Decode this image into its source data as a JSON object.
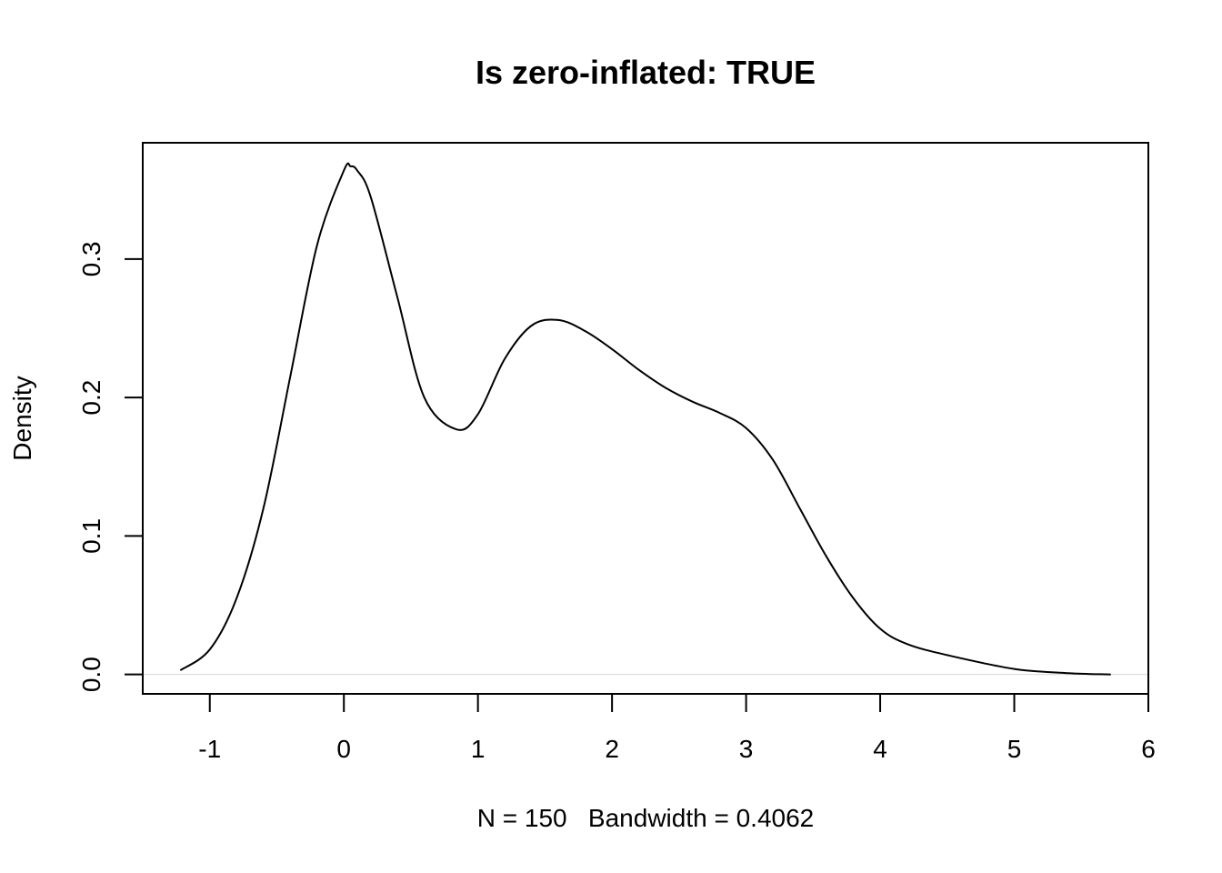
{
  "chart_data": {
    "type": "line",
    "title": "Is zero-inflated: TRUE",
    "xlabel": "N = 150   Bandwidth = 0.4062",
    "ylabel": "Density",
    "xlim": [
      -1.5,
      6.0
    ],
    "ylim": [
      -0.014,
      0.384
    ],
    "x_ticks": [
      -1,
      0,
      1,
      2,
      3,
      4,
      5,
      6
    ],
    "x_tick_labels": [
      "-1",
      "0",
      "1",
      "2",
      "3",
      "4",
      "5",
      "6"
    ],
    "y_ticks": [
      0.0,
      0.1,
      0.2,
      0.3
    ],
    "y_tick_labels": [
      "0.0",
      "0.1",
      "0.2",
      "0.3"
    ],
    "grid": false,
    "zero_line": true,
    "series": [
      {
        "x": [
          -1.22,
          -1.0,
          -0.8,
          -0.6,
          -0.4,
          -0.2,
          0.0,
          0.05,
          0.1,
          0.2,
          0.4,
          0.6,
          0.84,
          1.0,
          1.2,
          1.4,
          1.6,
          1.8,
          2.0,
          2.2,
          2.4,
          2.6,
          2.8,
          3.0,
          3.2,
          3.4,
          3.6,
          3.8,
          4.0,
          4.2,
          4.5,
          5.0,
          5.4,
          5.72
        ],
        "y": [
          0.003,
          0.018,
          0.055,
          0.12,
          0.215,
          0.31,
          0.364,
          0.367,
          0.364,
          0.345,
          0.272,
          0.2,
          0.177,
          0.188,
          0.228,
          0.252,
          0.256,
          0.248,
          0.235,
          0.22,
          0.207,
          0.197,
          0.189,
          0.178,
          0.155,
          0.12,
          0.085,
          0.055,
          0.033,
          0.022,
          0.014,
          0.004,
          0.001,
          0.0
        ]
      }
    ]
  }
}
